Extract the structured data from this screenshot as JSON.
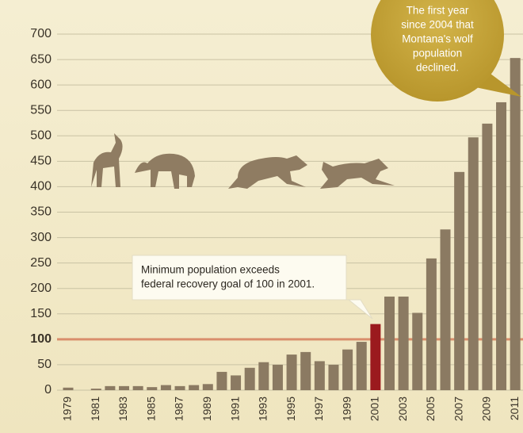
{
  "chart_data": {
    "type": "bar",
    "categories": [
      "1979",
      null,
      "1981",
      null,
      "1983",
      null,
      "1985",
      null,
      "1987",
      null,
      "1989",
      null,
      "1991",
      null,
      "1993",
      null,
      "1995",
      null,
      "1997",
      null,
      "1999",
      null,
      "2001",
      null,
      "2003",
      null,
      "2005",
      null,
      "2007",
      null,
      "2009",
      null,
      "2011"
    ],
    "values": [
      5,
      0,
      3,
      8,
      8,
      8,
      6,
      10,
      8,
      10,
      12,
      36,
      29,
      44,
      55,
      50,
      70,
      75,
      57,
      50,
      80,
      95,
      130,
      184,
      184,
      152,
      259,
      316,
      429,
      497,
      524,
      566,
      653
    ],
    "colors": [
      "#8b7a62",
      "#8b7a62",
      "#8b7a62",
      "#8b7a62",
      "#8b7a62",
      "#8b7a62",
      "#8b7a62",
      "#8b7a62",
      "#8b7a62",
      "#8b7a62",
      "#8b7a62",
      "#8b7a62",
      "#8b7a62",
      "#8b7a62",
      "#8b7a62",
      "#8b7a62",
      "#8b7a62",
      "#8b7a62",
      "#8b7a62",
      "#8b7a62",
      "#8b7a62",
      "#8b7a62",
      "#9b1a1e",
      "#8b7a62",
      "#8b7a62",
      "#8b7a62",
      "#8b7a62",
      "#8b7a62",
      "#8b7a62",
      "#8b7a62",
      "#8b7a62",
      "#8b7a62",
      "#8b7a62"
    ],
    "ylim": [
      0,
      700
    ],
    "yticks": [
      0,
      50,
      100,
      150,
      200,
      250,
      300,
      350,
      400,
      450,
      500,
      550,
      600,
      650,
      700
    ],
    "grid": true,
    "reference_line": {
      "value": 100,
      "color": "#d98e6c",
      "label_color": "#b0231f"
    },
    "annotations": [
      {
        "lines": [
          "Minimum population exceeds",
          "federal recovery goal of 100 in 2001."
        ]
      },
      {
        "lines": [
          "The first year",
          "since 2004 that",
          "Montana's wolf",
          "population",
          "declined."
        ]
      }
    ]
  }
}
